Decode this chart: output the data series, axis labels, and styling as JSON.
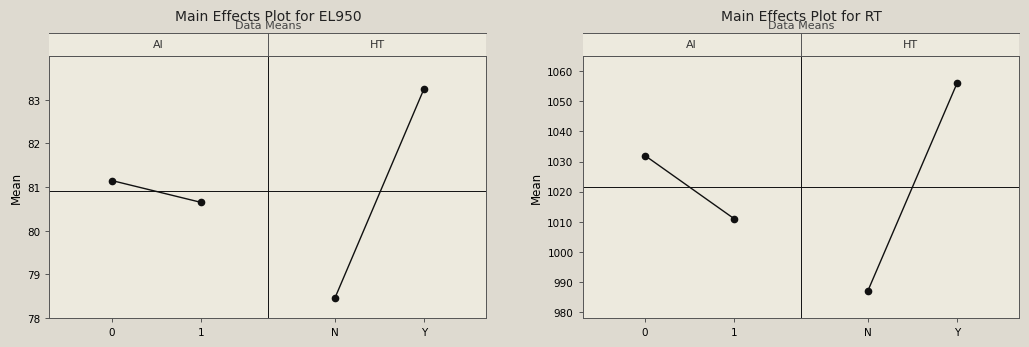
{
  "plot1": {
    "title": "Main Effects Plot for EL950",
    "subtitle": "Data Means",
    "ylabel": "Mean",
    "sections": [
      "Al",
      "HT"
    ],
    "section_labels": [
      [
        "0",
        "1"
      ],
      [
        "N",
        "Y"
      ]
    ],
    "section_values": [
      [
        81.15,
        80.65
      ],
      [
        78.45,
        83.25
      ]
    ],
    "ylim": [
      78,
      84
    ],
    "yticks": [
      78,
      79,
      80,
      81,
      82,
      83
    ],
    "mean_line": 80.9
  },
  "plot2": {
    "title": "Main Effects Plot for RT",
    "subtitle": "Data Means",
    "ylabel": "Mean",
    "sections": [
      "Al",
      "HT"
    ],
    "section_labels": [
      [
        "0",
        "1"
      ],
      [
        "N",
        "Y"
      ]
    ],
    "section_values": [
      [
        1032,
        1011
      ],
      [
        987,
        1056
      ]
    ],
    "ylim": [
      978,
      1065
    ],
    "yticks": [
      980,
      990,
      1000,
      1010,
      1020,
      1030,
      1040,
      1050,
      1060
    ],
    "mean_line": 1021.5
  },
  "outer_bg_color": "#dedad0",
  "inner_bg_color": "#edeade",
  "plot_bg_color": "#edeade",
  "line_color": "#111111",
  "marker_color": "#111111",
  "marker_size": 4.5,
  "line_width": 1.0,
  "title_fontsize": 10,
  "subtitle_fontsize": 8,
  "axis_label_fontsize": 8.5,
  "tick_fontsize": 7.5,
  "section_label_fontsize": 8
}
